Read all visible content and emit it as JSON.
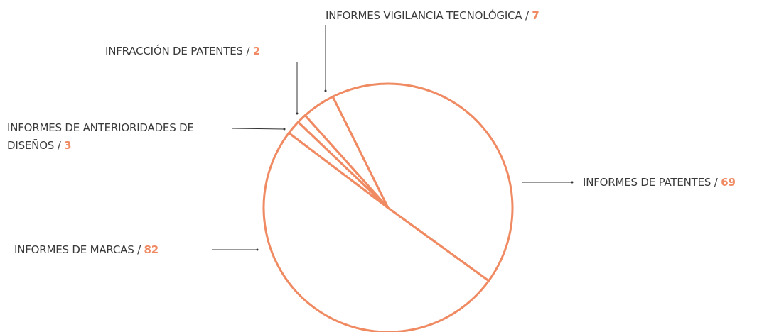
{
  "chart_data": {
    "type": "pie",
    "color": "#ef8a62",
    "categories": [
      "INFORMES DE PATENTES /",
      "INFORMES DE MARCAS /",
      "INFORMES DE ANTERIORIDADES DE DISEÑOS /",
      "INFRACCIÓN DE PATENTES /",
      "INFORMES VIGILANCIA TECNOLÓGICA /"
    ],
    "values": [
      69,
      82,
      3,
      2,
      7
    ]
  }
}
